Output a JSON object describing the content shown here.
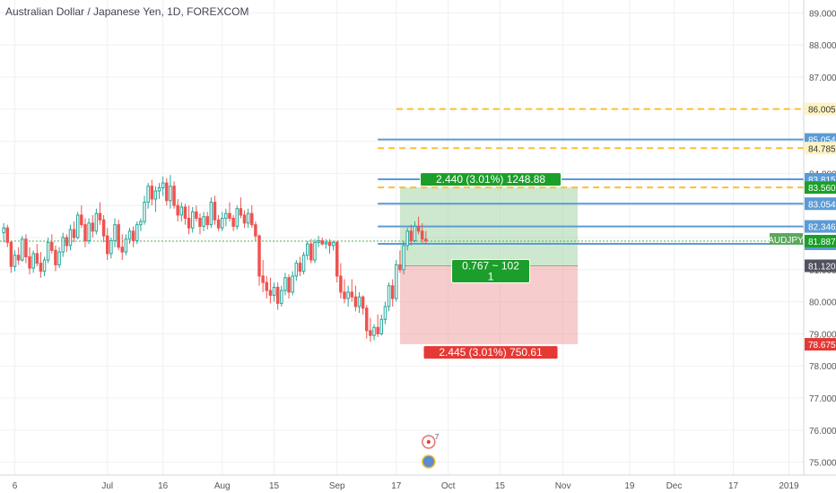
{
  "chart_data": {
    "type": "candlestick",
    "title": "Australian Dollar / Japanese Yen, 1D, FOREXCOM",
    "ylim": [
      74.6,
      89.4
    ],
    "y_ticks": [
      75,
      76,
      77,
      78,
      79,
      80,
      81,
      82,
      83,
      84,
      85,
      86,
      87,
      88,
      89
    ],
    "y_tick_labels": [
      "75.000",
      "76.000",
      "77.000",
      "78.000",
      "79.000",
      "80.000",
      "81.000",
      "82.000",
      "83.000",
      "84.000",
      "85.000",
      "86.000",
      "87.000",
      "88.000",
      "89.000"
    ],
    "x_ticks": [
      {
        "label": "6",
        "day": -25
      },
      {
        "label": "Jul",
        "day": 0
      },
      {
        "label": "16",
        "day": 15
      },
      {
        "label": "Aug",
        "day": 31
      },
      {
        "label": "15",
        "day": 45
      },
      {
        "label": "Sep",
        "day": 62
      },
      {
        "label": "17",
        "day": 78
      },
      {
        "label": "Oct",
        "day": 92
      },
      {
        "label": "15",
        "day": 106
      },
      {
        "label": "Nov",
        "day": 123
      },
      {
        "label": "19",
        "day": 141
      },
      {
        "label": "Dec",
        "day": 153
      },
      {
        "label": "17",
        "day": 169
      },
      {
        "label": "2019",
        "day": 184
      }
    ],
    "xlim_days": [
      -29,
      188
    ],
    "candles": [
      {
        "day": -28,
        "o": 82.15,
        "h": 82.45,
        "l": 81.85,
        "c": 82.3
      },
      {
        "day": -27,
        "o": 82.3,
        "h": 82.4,
        "l": 81.7,
        "c": 81.85
      },
      {
        "day": -26,
        "o": 81.85,
        "h": 81.9,
        "l": 80.9,
        "c": 81.1
      },
      {
        "day": -25,
        "o": 81.1,
        "h": 81.6,
        "l": 80.95,
        "c": 81.45
      },
      {
        "day": -24,
        "o": 81.45,
        "h": 81.7,
        "l": 81.15,
        "c": 81.3
      },
      {
        "day": -23,
        "o": 81.3,
        "h": 82.05,
        "l": 81.25,
        "c": 81.95
      },
      {
        "day": -22,
        "o": 81.95,
        "h": 82.1,
        "l": 81.2,
        "c": 81.4
      },
      {
        "day": -21,
        "o": 81.4,
        "h": 81.7,
        "l": 80.85,
        "c": 81.05
      },
      {
        "day": -20,
        "o": 81.05,
        "h": 81.6,
        "l": 80.9,
        "c": 81.5
      },
      {
        "day": -19,
        "o": 81.5,
        "h": 81.8,
        "l": 81.1,
        "c": 81.2
      },
      {
        "day": -18,
        "o": 81.2,
        "h": 81.55,
        "l": 80.75,
        "c": 80.95
      },
      {
        "day": -17,
        "o": 80.95,
        "h": 81.4,
        "l": 80.8,
        "c": 81.3
      },
      {
        "day": -16,
        "o": 81.3,
        "h": 82.0,
        "l": 81.2,
        "c": 81.85
      },
      {
        "day": -15,
        "o": 81.85,
        "h": 82.1,
        "l": 81.5,
        "c": 81.6
      },
      {
        "day": -14,
        "o": 81.6,
        "h": 81.75,
        "l": 80.95,
        "c": 81.15
      },
      {
        "day": -13,
        "o": 81.15,
        "h": 81.7,
        "l": 81.05,
        "c": 81.55
      },
      {
        "day": -12,
        "o": 81.55,
        "h": 82.15,
        "l": 81.4,
        "c": 82.0
      },
      {
        "day": -11,
        "o": 82.0,
        "h": 82.1,
        "l": 81.55,
        "c": 81.75
      },
      {
        "day": -10,
        "o": 81.75,
        "h": 82.4,
        "l": 81.6,
        "c": 82.25
      },
      {
        "day": -9,
        "o": 82.25,
        "h": 82.5,
        "l": 81.85,
        "c": 82.0
      },
      {
        "day": -8,
        "o": 82.0,
        "h": 82.8,
        "l": 81.95,
        "c": 82.7
      },
      {
        "day": -7,
        "o": 82.7,
        "h": 83.0,
        "l": 82.3,
        "c": 82.4
      },
      {
        "day": -6,
        "o": 82.4,
        "h": 82.6,
        "l": 81.7,
        "c": 81.9
      },
      {
        "day": -5,
        "o": 81.9,
        "h": 82.6,
        "l": 81.8,
        "c": 82.45
      },
      {
        "day": -4,
        "o": 82.45,
        "h": 82.7,
        "l": 82.0,
        "c": 82.2
      },
      {
        "day": -3,
        "o": 82.2,
        "h": 82.9,
        "l": 82.1,
        "c": 82.75
      },
      {
        "day": -2,
        "o": 82.75,
        "h": 83.1,
        "l": 82.4,
        "c": 82.55
      },
      {
        "day": -1,
        "o": 82.55,
        "h": 82.7,
        "l": 81.85,
        "c": 82.05
      },
      {
        "day": 0,
        "o": 82.05,
        "h": 82.3,
        "l": 81.3,
        "c": 81.5
      },
      {
        "day": 1,
        "o": 81.5,
        "h": 82.0,
        "l": 81.35,
        "c": 81.9
      },
      {
        "day": 2,
        "o": 81.9,
        "h": 82.6,
        "l": 81.7,
        "c": 82.4
      },
      {
        "day": 3,
        "o": 82.4,
        "h": 82.55,
        "l": 81.6,
        "c": 81.7
      },
      {
        "day": 4,
        "o": 81.7,
        "h": 82.1,
        "l": 81.3,
        "c": 81.55
      },
      {
        "day": 5,
        "o": 81.55,
        "h": 82.1,
        "l": 81.45,
        "c": 81.95
      },
      {
        "day": 6,
        "o": 81.95,
        "h": 82.3,
        "l": 81.8,
        "c": 82.2
      },
      {
        "day": 7,
        "o": 82.2,
        "h": 82.35,
        "l": 81.7,
        "c": 81.9
      },
      {
        "day": 8,
        "o": 81.9,
        "h": 82.5,
        "l": 81.8,
        "c": 82.4
      },
      {
        "day": 9,
        "o": 82.4,
        "h": 82.6,
        "l": 82.2,
        "c": 82.5
      },
      {
        "day": 10,
        "o": 82.5,
        "h": 83.3,
        "l": 82.4,
        "c": 83.1
      },
      {
        "day": 11,
        "o": 83.1,
        "h": 83.7,
        "l": 82.9,
        "c": 83.6
      },
      {
        "day": 12,
        "o": 83.6,
        "h": 83.8,
        "l": 83.0,
        "c": 83.2
      },
      {
        "day": 13,
        "o": 83.2,
        "h": 83.6,
        "l": 82.8,
        "c": 83.45
      },
      {
        "day": 14,
        "o": 83.45,
        "h": 83.7,
        "l": 83.2,
        "c": 83.55
      },
      {
        "day": 15,
        "o": 83.55,
        "h": 83.9,
        "l": 83.3,
        "c": 83.7
      },
      {
        "day": 16,
        "o": 83.7,
        "h": 83.85,
        "l": 83.0,
        "c": 83.15
      },
      {
        "day": 17,
        "o": 83.15,
        "h": 83.95,
        "l": 82.9,
        "c": 83.6
      },
      {
        "day": 18,
        "o": 83.6,
        "h": 83.75,
        "l": 82.9,
        "c": 83.0
      },
      {
        "day": 19,
        "o": 83.0,
        "h": 83.2,
        "l": 82.5,
        "c": 82.7
      },
      {
        "day": 20,
        "o": 82.7,
        "h": 83.1,
        "l": 82.5,
        "c": 82.95
      },
      {
        "day": 21,
        "o": 82.95,
        "h": 83.05,
        "l": 82.4,
        "c": 82.6
      },
      {
        "day": 22,
        "o": 82.6,
        "h": 83.0,
        "l": 82.1,
        "c": 82.3
      },
      {
        "day": 23,
        "o": 82.3,
        "h": 82.95,
        "l": 82.15,
        "c": 82.8
      },
      {
        "day": 24,
        "o": 82.8,
        "h": 83.0,
        "l": 82.5,
        "c": 82.6
      },
      {
        "day": 25,
        "o": 82.6,
        "h": 82.75,
        "l": 82.1,
        "c": 82.35
      },
      {
        "day": 26,
        "o": 82.35,
        "h": 82.8,
        "l": 82.2,
        "c": 82.65
      },
      {
        "day": 27,
        "o": 82.65,
        "h": 82.8,
        "l": 82.25,
        "c": 82.4
      },
      {
        "day": 28,
        "o": 82.4,
        "h": 83.25,
        "l": 82.3,
        "c": 83.1
      },
      {
        "day": 29,
        "o": 83.1,
        "h": 83.3,
        "l": 82.4,
        "c": 82.55
      },
      {
        "day": 30,
        "o": 82.55,
        "h": 82.7,
        "l": 82.2,
        "c": 82.3
      },
      {
        "day": 31,
        "o": 82.3,
        "h": 82.8,
        "l": 82.2,
        "c": 82.6
      },
      {
        "day": 32,
        "o": 82.6,
        "h": 82.9,
        "l": 82.35,
        "c": 82.75
      },
      {
        "day": 33,
        "o": 82.75,
        "h": 83.1,
        "l": 82.5,
        "c": 82.6
      },
      {
        "day": 34,
        "o": 82.6,
        "h": 82.7,
        "l": 82.2,
        "c": 82.35
      },
      {
        "day": 35,
        "o": 82.35,
        "h": 83.0,
        "l": 82.25,
        "c": 82.9
      },
      {
        "day": 36,
        "o": 82.9,
        "h": 83.25,
        "l": 82.6,
        "c": 82.7
      },
      {
        "day": 37,
        "o": 82.7,
        "h": 82.85,
        "l": 82.3,
        "c": 82.45
      },
      {
        "day": 38,
        "o": 82.45,
        "h": 82.9,
        "l": 82.3,
        "c": 82.75
      },
      {
        "day": 39,
        "o": 82.75,
        "h": 83.0,
        "l": 82.3,
        "c": 82.4
      },
      {
        "day": 40,
        "o": 82.4,
        "h": 82.5,
        "l": 81.9,
        "c": 82.05
      },
      {
        "day": 41,
        "o": 82.05,
        "h": 82.1,
        "l": 80.5,
        "c": 80.8
      },
      {
        "day": 42,
        "o": 80.8,
        "h": 81.3,
        "l": 80.3,
        "c": 80.6
      },
      {
        "day": 43,
        "o": 80.6,
        "h": 80.8,
        "l": 80.1,
        "c": 80.35
      },
      {
        "day": 44,
        "o": 80.35,
        "h": 80.75,
        "l": 79.95,
        "c": 80.2
      },
      {
        "day": 45,
        "o": 80.2,
        "h": 80.6,
        "l": 80.0,
        "c": 80.45
      },
      {
        "day": 46,
        "o": 80.45,
        "h": 80.6,
        "l": 79.75,
        "c": 79.95
      },
      {
        "day": 47,
        "o": 79.95,
        "h": 80.5,
        "l": 79.85,
        "c": 80.35
      },
      {
        "day": 48,
        "o": 80.35,
        "h": 80.9,
        "l": 80.2,
        "c": 80.75
      },
      {
        "day": 49,
        "o": 80.75,
        "h": 80.85,
        "l": 80.1,
        "c": 80.3
      },
      {
        "day": 50,
        "o": 80.3,
        "h": 80.95,
        "l": 80.2,
        "c": 80.8
      },
      {
        "day": 51,
        "o": 80.8,
        "h": 81.3,
        "l": 80.65,
        "c": 81.2
      },
      {
        "day": 52,
        "o": 81.2,
        "h": 81.4,
        "l": 80.8,
        "c": 80.95
      },
      {
        "day": 53,
        "o": 80.95,
        "h": 81.55,
        "l": 80.85,
        "c": 81.45
      },
      {
        "day": 54,
        "o": 81.45,
        "h": 81.9,
        "l": 81.3,
        "c": 81.8
      },
      {
        "day": 55,
        "o": 81.8,
        "h": 81.95,
        "l": 81.2,
        "c": 81.3
      },
      {
        "day": 56,
        "o": 81.3,
        "h": 81.95,
        "l": 81.2,
        "c": 81.85
      },
      {
        "day": 57,
        "o": 81.85,
        "h": 82.05,
        "l": 81.7,
        "c": 81.9
      },
      {
        "day": 58,
        "o": 81.9,
        "h": 82.0,
        "l": 81.75,
        "c": 81.8
      },
      {
        "day": 59,
        "o": 81.8,
        "h": 81.95,
        "l": 81.65,
        "c": 81.85
      },
      {
        "day": 60,
        "o": 81.85,
        "h": 81.95,
        "l": 81.5,
        "c": 81.75
      },
      {
        "day": 61,
        "o": 81.75,
        "h": 81.9,
        "l": 81.6,
        "c": 81.85
      },
      {
        "day": 62,
        "o": 81.85,
        "h": 81.9,
        "l": 80.6,
        "c": 80.8
      },
      {
        "day": 63,
        "o": 80.8,
        "h": 81.2,
        "l": 80.1,
        "c": 80.3
      },
      {
        "day": 64,
        "o": 80.3,
        "h": 80.7,
        "l": 79.95,
        "c": 80.1
      },
      {
        "day": 65,
        "o": 80.1,
        "h": 80.5,
        "l": 79.85,
        "c": 80.3
      },
      {
        "day": 66,
        "o": 80.3,
        "h": 80.7,
        "l": 80.0,
        "c": 80.15
      },
      {
        "day": 67,
        "o": 80.15,
        "h": 80.5,
        "l": 79.7,
        "c": 79.85
      },
      {
        "day": 68,
        "o": 79.85,
        "h": 80.3,
        "l": 79.65,
        "c": 80.15
      },
      {
        "day": 69,
        "o": 80.15,
        "h": 80.2,
        "l": 79.6,
        "c": 79.8
      },
      {
        "day": 70,
        "o": 79.8,
        "h": 79.9,
        "l": 78.85,
        "c": 79.1
      },
      {
        "day": 71,
        "o": 79.1,
        "h": 79.5,
        "l": 78.75,
        "c": 78.95
      },
      {
        "day": 72,
        "o": 78.95,
        "h": 79.3,
        "l": 78.8,
        "c": 79.2
      },
      {
        "day": 73,
        "o": 79.2,
        "h": 79.6,
        "l": 78.9,
        "c": 79.0
      },
      {
        "day": 74,
        "o": 79.0,
        "h": 79.6,
        "l": 78.95,
        "c": 79.45
      },
      {
        "day": 75,
        "o": 79.45,
        "h": 80.0,
        "l": 79.3,
        "c": 79.85
      },
      {
        "day": 76,
        "o": 79.85,
        "h": 80.6,
        "l": 79.7,
        "c": 80.5
      },
      {
        "day": 77,
        "o": 80.5,
        "h": 80.7,
        "l": 79.85,
        "c": 80.1
      },
      {
        "day": 78,
        "o": 80.1,
        "h": 81.3,
        "l": 80.0,
        "c": 81.15
      },
      {
        "day": 79,
        "o": 81.15,
        "h": 81.6,
        "l": 80.9,
        "c": 81.0
      },
      {
        "day": 80,
        "o": 81.0,
        "h": 81.9,
        "l": 80.85,
        "c": 81.75
      },
      {
        "day": 81,
        "o": 81.75,
        "h": 82.3,
        "l": 81.6,
        "c": 82.2
      },
      {
        "day": 82,
        "o": 82.2,
        "h": 82.4,
        "l": 81.75,
        "c": 81.9
      },
      {
        "day": 83,
        "o": 81.9,
        "h": 82.5,
        "l": 81.85,
        "c": 82.35
      },
      {
        "day": 84,
        "o": 82.35,
        "h": 82.65,
        "l": 82.1,
        "c": 82.2
      },
      {
        "day": 85,
        "o": 82.2,
        "h": 82.45,
        "l": 81.8,
        "c": 81.95
      },
      {
        "day": 86,
        "o": 81.95,
        "h": 82.2,
        "l": 81.8,
        "c": 81.9
      }
    ],
    "up_color": "#26a69a",
    "down_color": "#ef5350",
    "candle_body_up": "#ffffff",
    "candle_body_down": "#ef5350",
    "current_price": 81.887,
    "current_price_label": "81.887",
    "symbol_label": "AUDJPY",
    "horizontal_lines": [
      {
        "price": 86.005,
        "label": "86.005",
        "style": "dashed",
        "color": "#fbc02d",
        "start_day": 78
      },
      {
        "price": 85.054,
        "label": "85.054",
        "style": "solid",
        "color": "#5b9bd5",
        "start_day": 73
      },
      {
        "price": 84.785,
        "label": "84.785",
        "style": "dashed",
        "color": "#fbc02d",
        "start_day": 73
      },
      {
        "price": 83.815,
        "label": "83.815",
        "style": "solid",
        "color": "#5b9bd5",
        "start_day": 73
      },
      {
        "price": 83.56,
        "label": "83.560",
        "style": "dashed",
        "color": "#fbc02d",
        "start_day": 73
      },
      {
        "price": 83.054,
        "label": "83.054",
        "style": "solid",
        "color": "#5b9bd5",
        "start_day": 73
      },
      {
        "price": 82.346,
        "label": "82.346",
        "style": "solid",
        "color": "#5b9bd5",
        "start_day": 73
      },
      {
        "price": 81.804,
        "label": "81.804",
        "style": "solid",
        "color": "#5b9bd5",
        "start_day": 73
      }
    ],
    "position": {
      "entry": 81.12,
      "entry_label": "81.120",
      "target": 83.56,
      "target_label": "83.560",
      "stop": 78.675,
      "stop_label": "78.675",
      "start_day": 79,
      "end_day": 127,
      "profit_text": "2.440 (3.01%) 1248.88",
      "loss_text": "2.445 (3.01%) 750.61",
      "ratio_line1": "0.767 ~ 102",
      "ratio_line2": "1"
    },
    "events": [
      {
        "day": 86,
        "text": "7"
      }
    ]
  }
}
